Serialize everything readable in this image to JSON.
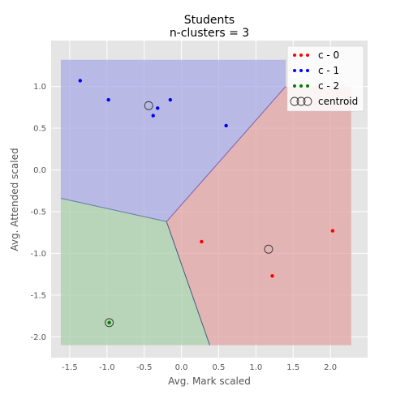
{
  "chart_data": {
    "type": "scatter",
    "title": "Students",
    "subtitle": "n-clusters = 3",
    "xlabel": "Avg. Mark scaled",
    "ylabel": "Avg. Attended scaled",
    "xlim": [
      -1.75,
      2.5
    ],
    "ylim": [
      -2.25,
      1.55
    ],
    "xticks": [
      "-1.5",
      "-1.0",
      "-0.5",
      "0.0",
      "0.5",
      "1.0",
      "1.5",
      "2.0"
    ],
    "xtick_values": [
      -1.5,
      -1.0,
      -0.5,
      0.0,
      0.5,
      1.0,
      1.5,
      2.0
    ],
    "yticks": [
      "1.0",
      "0.5",
      "0.0",
      "-0.5",
      "-1.0",
      "-1.5",
      "-2.0"
    ],
    "ytick_values": [
      1.0,
      0.5,
      0.0,
      -0.5,
      -1.0,
      -1.5,
      -2.0
    ],
    "grid": true,
    "legend_position": "top-right",
    "regions": [
      {
        "cluster": "c - 0",
        "color": "#e2a3a3",
        "polygon": [
          [
            -0.2,
            -0.62
          ],
          [
            1.4,
            1.0
          ],
          [
            1.9,
            1.0
          ],
          [
            2.28,
            1.0
          ],
          [
            2.28,
            -2.1
          ],
          [
            0.38,
            -2.1
          ]
        ]
      },
      {
        "cluster": "c - 1",
        "color": "#a9a9e6",
        "polygon": [
          [
            -1.62,
            1.32
          ],
          [
            1.4,
            1.32
          ],
          [
            1.4,
            1.0
          ],
          [
            -0.2,
            -0.62
          ],
          [
            -1.62,
            -0.34
          ]
        ]
      },
      {
        "cluster": "c - 2",
        "color": "#a9cfa9",
        "polygon": [
          [
            -1.62,
            -0.34
          ],
          [
            -0.2,
            -0.62
          ],
          [
            0.38,
            -2.1
          ],
          [
            -1.62,
            -2.1
          ]
        ]
      }
    ],
    "series": [
      {
        "name": "c - 0",
        "color": "#ff0000",
        "points": [
          [
            0.27,
            -0.86
          ],
          [
            1.22,
            -1.27
          ],
          [
            2.03,
            -0.73
          ]
        ]
      },
      {
        "name": "c - 1",
        "color": "#0000ff",
        "points": [
          [
            -1.36,
            1.07
          ],
          [
            -0.98,
            0.84
          ],
          [
            -0.38,
            0.65
          ],
          [
            -0.32,
            0.74
          ],
          [
            -0.15,
            0.84
          ],
          [
            0.6,
            0.53
          ]
        ]
      },
      {
        "name": "c - 2",
        "color": "#008000",
        "points": [
          [
            -0.97,
            -1.83
          ]
        ]
      }
    ],
    "centroids": {
      "name": "centroid",
      "points": [
        [
          1.17,
          -0.95
        ],
        [
          -0.44,
          0.77
        ],
        [
          -0.97,
          -1.83
        ]
      ]
    },
    "colors": {
      "plot_background": "#e5e5e5",
      "grid": "#ffffff",
      "figure_background": "#ffffff"
    }
  }
}
